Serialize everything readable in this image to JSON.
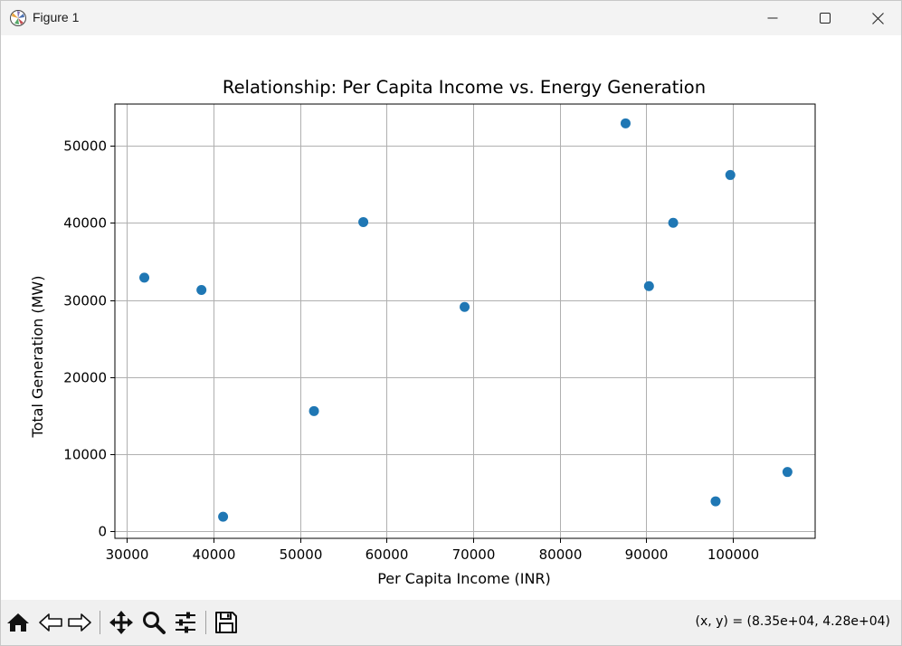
{
  "window": {
    "title": "Figure 1",
    "icons": {
      "app": "matplotlib-logo-icon",
      "minimize": "minimize-icon",
      "maximize": "maximize-icon",
      "close": "close-icon"
    }
  },
  "toolbar": {
    "tools": [
      "home-icon",
      "back-arrow-icon",
      "forward-arrow-icon",
      "pan-move-icon",
      "zoom-magnifier-icon",
      "configure-subplots-icon",
      "save-icon"
    ],
    "coords_text": "(x, y) = (8.35e+04, 4.28e+04)"
  },
  "chart_data": {
    "type": "scatter",
    "title": "Relationship: Per Capita Income vs. Energy Generation",
    "xlabel": "Per Capita Income (INR)",
    "ylabel": "Total Generation (MW)",
    "xlim": [
      28600,
      109500
    ],
    "ylim": [
      -900,
      55400
    ],
    "xticks": [
      30000,
      40000,
      50000,
      60000,
      70000,
      80000,
      90000,
      100000
    ],
    "xtick_labels": [
      "30000",
      "40000",
      "50000",
      "60000",
      "70000",
      "80000",
      "90000",
      "100000"
    ],
    "yticks": [
      0,
      10000,
      20000,
      30000,
      40000,
      50000
    ],
    "ytick_labels": [
      "0",
      "10000",
      "20000",
      "30000",
      "40000",
      "50000"
    ],
    "grid": true,
    "marker_color": "#1f77b4",
    "points": [
      {
        "x": 32000,
        "y": 32900
      },
      {
        "x": 38600,
        "y": 31300
      },
      {
        "x": 41100,
        "y": 1900
      },
      {
        "x": 51600,
        "y": 15600
      },
      {
        "x": 57300,
        "y": 40100
      },
      {
        "x": 69000,
        "y": 29100
      },
      {
        "x": 87600,
        "y": 52900
      },
      {
        "x": 90300,
        "y": 31800
      },
      {
        "x": 93100,
        "y": 40000
      },
      {
        "x": 98000,
        "y": 3900
      },
      {
        "x": 99700,
        "y": 46200
      },
      {
        "x": 106300,
        "y": 7700
      }
    ]
  }
}
